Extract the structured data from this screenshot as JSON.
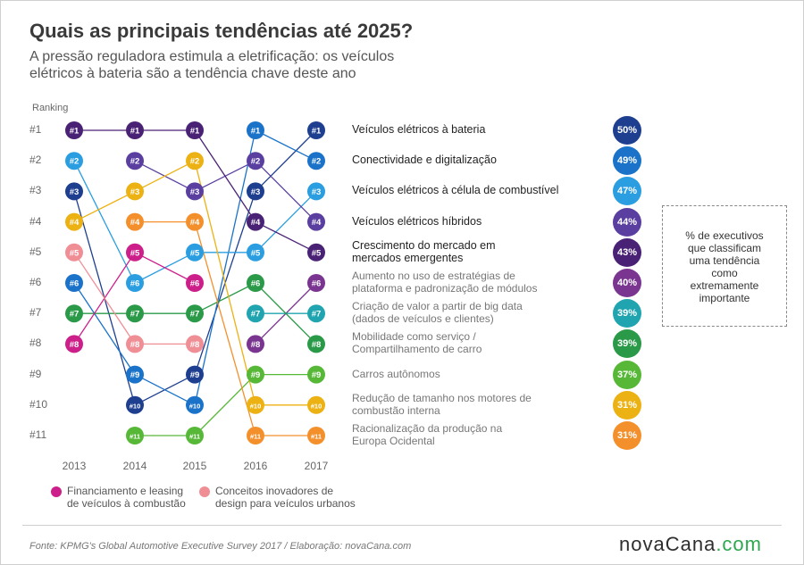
{
  "title": "Quais as principais tendências até 2025?",
  "subtitle": "A pressão reguladora estimula a eletrificação: os veículos\nelétricos à bateria são a tendência chave deste ano",
  "ranking_label": "Ranking",
  "note": "% de executivos\nque classificam\numa tendência\ncomo\nextremamente\nimportante",
  "legend": [
    {
      "label": "Financiamento e leasing\nde veículos à combustão",
      "color": "#cc1f8a"
    },
    {
      "label": "Conceitos inovadores de\ndesign para veículos urbanos",
      "color": "#f08e95"
    }
  ],
  "source": "Fonte: KPMG's Global Automotive Executive Survey 2017 / Elaboração: novaCana.com",
  "brand": {
    "name": "novaCana",
    "suffix": ".com"
  },
  "chart_data": {
    "type": "bump",
    "ylabel": "Ranking",
    "rank_labels": [
      "#1",
      "#2",
      "#3",
      "#4",
      "#5",
      "#6",
      "#7",
      "#8",
      "#9",
      "#10",
      "#11"
    ],
    "years": [
      "2013",
      "2014",
      "2015",
      "2016",
      "2017"
    ],
    "series": [
      {
        "name": "Veículos elétricos à bateria",
        "color": "#1e3f8f",
        "ranks": [
          3,
          10,
          9,
          3,
          1
        ],
        "pct": "50%",
        "style": "strong"
      },
      {
        "name": "Conectividade e digitalização",
        "color": "#1a73c9",
        "ranks": [
          6,
          9,
          10,
          1,
          2
        ],
        "pct": "49%",
        "style": "strong"
      },
      {
        "name": "Veículos elétricos à célula de combustível",
        "color": "#2a9ee0",
        "ranks": [
          2,
          6,
          5,
          5,
          3
        ],
        "pct": "47%",
        "style": "strong"
      },
      {
        "name": "Veículos elétricos híbridos",
        "color": "#5a3fa0",
        "ranks": [
          null,
          2,
          3,
          2,
          4
        ],
        "pct": "44%",
        "style": "strong"
      },
      {
        "name": "Crescimento do mercado em\nmercados emergentes",
        "color": "#4a2275",
        "ranks": [
          1,
          1,
          1,
          4,
          5
        ],
        "pct": "43%",
        "style": "strong"
      },
      {
        "name": "Aumento no uso de estratégias de\nplataforma e padronização de módulos",
        "color": "#7a3590",
        "ranks": [
          null,
          null,
          null,
          8,
          6
        ],
        "pct": "40%",
        "style": "light"
      },
      {
        "name": "Criação de valor a partir de big data\n(dados de veículos e clientes)",
        "color": "#20a4b0",
        "ranks": [
          null,
          null,
          null,
          7,
          7
        ],
        "pct": "39%",
        "style": "light"
      },
      {
        "name": "Mobilidade como serviço /\nCompartilhamento de carro",
        "color": "#2a9a48",
        "ranks": [
          7,
          7,
          7,
          6,
          8
        ],
        "pct": "39%",
        "style": "light"
      },
      {
        "name": "Carros autônomos",
        "color": "#57b838",
        "ranks": [
          null,
          11,
          11,
          9,
          9
        ],
        "pct": "37%",
        "style": "light"
      },
      {
        "name": "Redução de tamanho nos motores de\ncombustão interna",
        "color": "#ecb112",
        "ranks": [
          4,
          3,
          2,
          10,
          10
        ],
        "pct": "31%",
        "style": "light"
      },
      {
        "name": "Racionalização da produção na\nEuropa Ocidental",
        "color": "#f4902c",
        "ranks": [
          null,
          4,
          4,
          11,
          11
        ],
        "pct": "31%",
        "style": "light"
      },
      {
        "name": "Financiamento e leasing de veículos à combustão",
        "color": "#cc1f8a",
        "ranks": [
          8,
          5,
          6,
          null,
          null
        ],
        "legend": true
      },
      {
        "name": "Conceitos inovadores de design para veículos urbanos",
        "color": "#f08e95",
        "ranks": [
          5,
          8,
          8,
          null,
          null
        ],
        "legend": true
      }
    ]
  }
}
